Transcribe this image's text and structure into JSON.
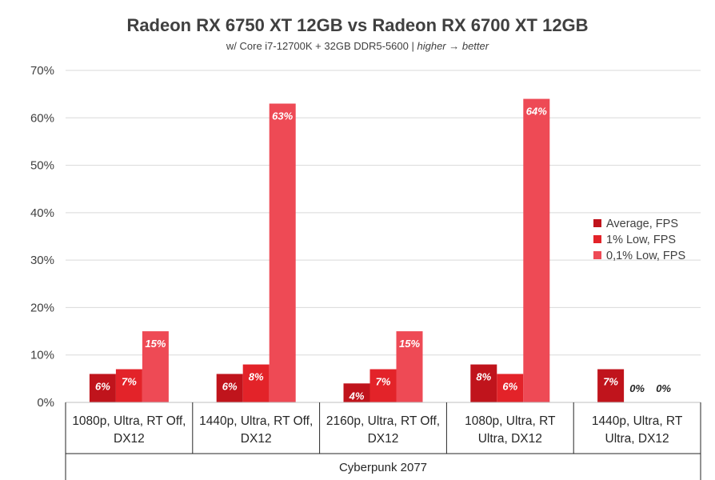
{
  "chart_data": {
    "type": "bar",
    "title": "Radeon RX 6750 XT 12GB vs Radeon RX 6700 XT 12GB",
    "subtitle": {
      "prefix": "w/ Core i7-12700K + 32GB DDR5-5600 | ",
      "suffix": "higher → better"
    },
    "group_label": "Cyberpunk 2077",
    "categories": [
      [
        "1080p, Ultra, RT Off,",
        "DX12"
      ],
      [
        "1440p, Ultra, RT Off,",
        "DX12"
      ],
      [
        "2160p, Ultra, RT Off,",
        "DX12"
      ],
      [
        "1080p, Ultra, RT",
        "Ultra, DX12"
      ],
      [
        "1440p, Ultra, RT",
        "Ultra, DX12"
      ]
    ],
    "series": [
      {
        "name": "Average, FPS",
        "color": "#c0141c",
        "values": [
          6,
          6,
          4,
          8,
          7
        ],
        "labels": [
          "6%",
          "6%",
          "4%",
          "8%",
          "7%"
        ]
      },
      {
        "name": "1% Low, FPS",
        "color": "#e32329",
        "values": [
          7,
          8,
          7,
          6,
          0
        ],
        "labels": [
          "7%",
          "8%",
          "7%",
          "6%",
          "0%"
        ]
      },
      {
        "name": "0,1% Low, FPS",
        "color": "#ee4a55",
        "values": [
          15,
          63,
          15,
          64,
          0
        ],
        "labels": [
          "15%",
          "63%",
          "15%",
          "64%",
          "0%"
        ]
      }
    ],
    "ylim": [
      0,
      70
    ],
    "yticks": [
      "0%",
      "10%",
      "20%",
      "30%",
      "40%",
      "50%",
      "60%",
      "70%"
    ],
    "grid": true,
    "legend_position": "right"
  }
}
